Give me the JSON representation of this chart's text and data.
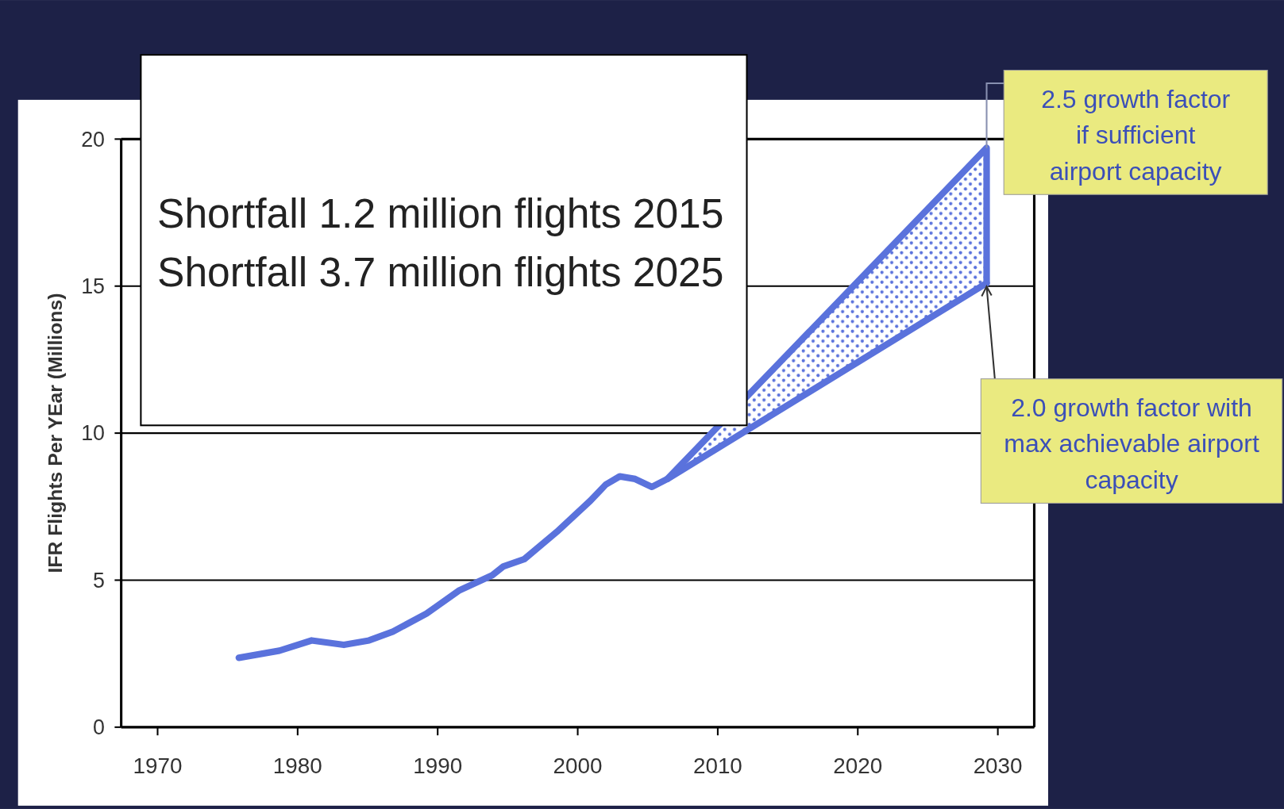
{
  "chart_data": {
    "type": "line",
    "ylabel": "IFR Flights Per YEar (Millions)",
    "xlim": [
      1967.4,
      2032.6
    ],
    "xticks": [
      1970,
      1980,
      1990,
      2000,
      2010,
      2020,
      2030
    ],
    "ylim": [
      0,
      20
    ],
    "yticks": [
      0,
      5,
      10,
      15,
      20
    ],
    "grid": "y",
    "series": [
      {
        "color": "#5a72dc",
        "x": [
          1975.8,
          1978.7,
          1981,
          1983.3,
          1985.1,
          1986.8,
          1989.2,
          1991.5,
          1993.9,
          1994.7,
          1996.2,
          1998.5,
          2000.9,
          2002,
          2003,
          2004.1,
          2005.3,
          2006.4,
          2029.2
        ],
        "values": [
          2.36,
          2.6,
          2.95,
          2.8,
          2.95,
          3.25,
          3.86,
          4.64,
          5.17,
          5.47,
          5.72,
          6.64,
          7.7,
          8.25,
          8.53,
          8.44,
          8.17,
          8.44,
          15.1
        ]
      },
      {
        "color": "#5a72dc",
        "x": [
          2006.4,
          2029.2,
          2029.2
        ],
        "values": [
          8.44,
          19.7,
          15.1
        ],
        "lower": [
          8.44,
          15.1,
          15.1
        ],
        "upper": [
          8.44,
          19.7,
          15.1
        ]
      }
    ],
    "annotations": [
      "Shortfall 1.2 million flights 2015",
      "Shortfall 3.7 million flights 2025",
      {
        "text": "2.5 growth factor if sufficient airport capacity",
        "x": 2029.2,
        "y": 19.7
      },
      {
        "text": "2.0 growth factor with max achievable airport capacity",
        "x": 2029.2,
        "y": 15.1
      }
    ]
  }
}
